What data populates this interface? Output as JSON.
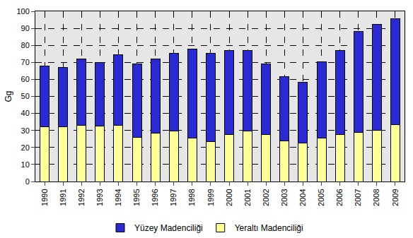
{
  "chart_data": {
    "type": "bar",
    "stacked": true,
    "grid": true,
    "legend": "bottom",
    "y_label": "Gg",
    "categories": [
      "1990",
      "1991",
      "1992",
      "1993",
      "1994",
      "1995",
      "1996",
      "1997",
      "1998",
      "1999",
      "2000",
      "2001",
      "2002",
      "2003",
      "2004",
      "2005",
      "2006",
      "2007",
      "2008",
      "2009"
    ],
    "series": [
      {
        "name": "Yeraltı Madenciliği",
        "color": "#ffff99",
        "values": [
          32,
          32,
          33,
          32.5,
          33,
          26,
          28.5,
          29.5,
          25.5,
          23.5,
          27.5,
          29.5,
          27.5,
          24,
          22.5,
          25.5,
          27.5,
          29,
          30,
          33.5
        ]
      },
      {
        "name": "Yüzey Madenciliği",
        "color": "#2a2ad0",
        "values": [
          36,
          35,
          39,
          37.5,
          41.5,
          43,
          43.5,
          46,
          52.5,
          52,
          49.5,
          47.5,
          41.5,
          37.5,
          36,
          45,
          49.5,
          59,
          62.5,
          62
        ]
      }
    ],
    "ylim": [
      0,
      100
    ],
    "yticks": [
      0,
      10,
      20,
      30,
      40,
      50,
      60,
      70,
      80,
      90,
      100
    ]
  }
}
